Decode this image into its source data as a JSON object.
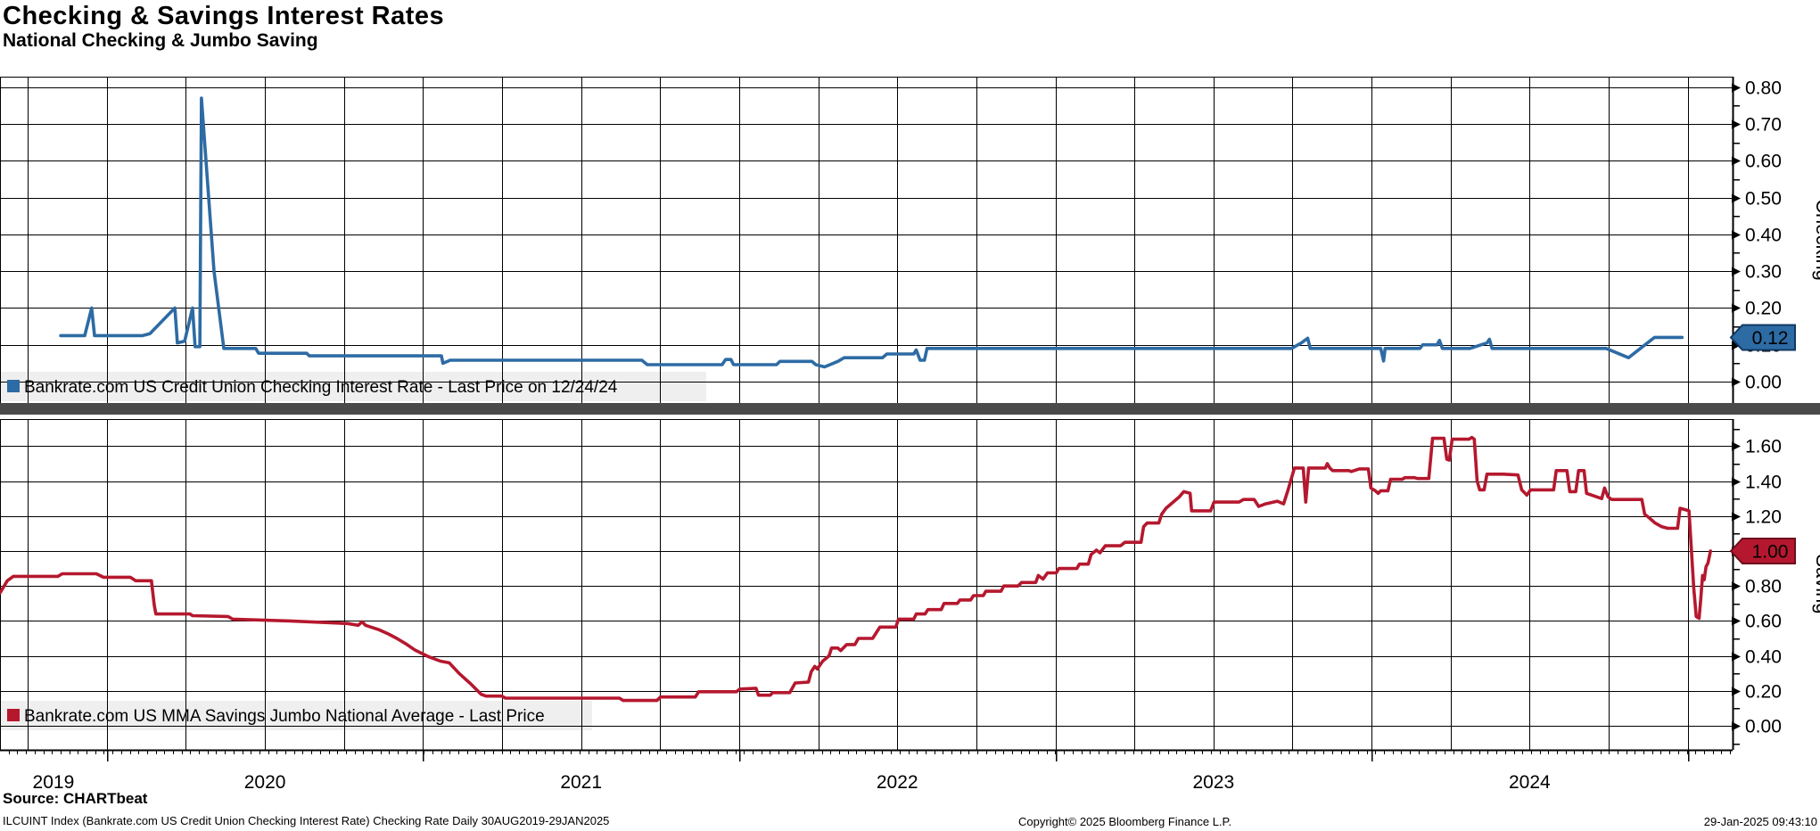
{
  "header": {
    "title": "Checking & Savings Interest Rates",
    "subtitle": "National Checking & Jumbo Saving"
  },
  "colors": {
    "checking_line": "#2d6ba4",
    "checking_flag_border": "#123a63",
    "saving_line": "#b5182e",
    "saving_flag_border": "#6d0e1c",
    "grid": "#000000",
    "separator": "#4a4a4a",
    "legend_band": "#efefef",
    "flag_text": "#ffffff"
  },
  "x_axis": {
    "x_domain": [
      2019.662,
      2025.142
    ],
    "year_labels": [
      "2019",
      "2020",
      "2021",
      "2022",
      "2023",
      "2024"
    ],
    "year_boundaries": [
      2020,
      2021,
      2022,
      2023,
      2024,
      2025
    ]
  },
  "footer": {
    "source": "Source: CHARTbeat",
    "tagline": "ILCUINT Index (Bankrate.com US Credit Union Checking Interest Rate) Checking Rate  Daily 30AUG2019-29JAN2025",
    "copyright": "Copyright© 2025 Bloomberg Finance L.P.",
    "timestamp": "29-Jan-2025 09:43:10"
  },
  "chart_data": [
    {
      "type": "line",
      "panel": "checking",
      "legend": "Bankrate.com US Credit Union Checking Interest Rate - Last Price on 12/24/24",
      "axis_label": "Checking",
      "color": "#2d6ba4",
      "last_price_value": 0.12,
      "last_price_label": "0.12",
      "ylim": [
        -0.06,
        0.83
      ],
      "yticks": [
        0.0,
        0.1,
        0.2,
        0.3,
        0.4,
        0.5,
        0.6,
        0.7,
        0.8
      ],
      "legend_position": "bottom-left",
      "grid": true,
      "points": [
        [
          2019.854,
          0.125
        ],
        [
          2019.93,
          0.125
        ],
        [
          2019.952,
          0.2
        ],
        [
          2019.961,
          0.125
        ],
        [
          2020.113,
          0.125
        ],
        [
          2020.136,
          0.13
        ],
        [
          2020.215,
          0.2
        ],
        [
          2020.223,
          0.105
        ],
        [
          2020.246,
          0.11
        ],
        [
          2020.271,
          0.2
        ],
        [
          2020.279,
          0.095
        ],
        [
          2020.294,
          0.095
        ],
        [
          2020.299,
          0.77
        ],
        [
          2020.339,
          0.3
        ],
        [
          2020.37,
          0.09
        ],
        [
          2020.471,
          0.09
        ],
        [
          2020.48,
          0.077
        ],
        [
          2020.632,
          0.077
        ],
        [
          2020.64,
          0.07
        ],
        [
          2021.058,
          0.07
        ],
        [
          2021.063,
          0.05
        ],
        [
          2021.086,
          0.058
        ],
        [
          2021.692,
          0.058
        ],
        [
          2021.709,
          0.046
        ],
        [
          2021.946,
          0.046
        ],
        [
          2021.957,
          0.06
        ],
        [
          2021.974,
          0.06
        ],
        [
          2021.982,
          0.046
        ],
        [
          2022.118,
          0.046
        ],
        [
          2022.129,
          0.055
        ],
        [
          2022.23,
          0.055
        ],
        [
          2022.242,
          0.046
        ],
        [
          2022.27,
          0.04
        ],
        [
          2022.312,
          0.055
        ],
        [
          2022.332,
          0.065
        ],
        [
          2022.453,
          0.065
        ],
        [
          2022.467,
          0.075
        ],
        [
          2022.552,
          0.075
        ],
        [
          2022.56,
          0.086
        ],
        [
          2022.572,
          0.058
        ],
        [
          2022.586,
          0.058
        ],
        [
          2022.594,
          0.09
        ],
        [
          2023.747,
          0.09
        ],
        [
          2023.778,
          0.105
        ],
        [
          2023.798,
          0.118
        ],
        [
          2023.806,
          0.09
        ],
        [
          2023.981,
          0.09
        ],
        [
          2024.029,
          0.09
        ],
        [
          2024.038,
          0.056
        ],
        [
          2024.043,
          0.09
        ],
        [
          2024.153,
          0.09
        ],
        [
          2024.162,
          0.1
        ],
        [
          2024.207,
          0.1
        ],
        [
          2024.215,
          0.112
        ],
        [
          2024.224,
          0.09
        ],
        [
          2024.311,
          0.09
        ],
        [
          2024.365,
          0.105
        ],
        [
          2024.373,
          0.115
        ],
        [
          2024.381,
          0.09
        ],
        [
          2024.742,
          0.09
        ],
        [
          2024.813,
          0.065
        ],
        [
          2024.895,
          0.12
        ],
        [
          2024.982,
          0.12
        ]
      ]
    },
    {
      "type": "line",
      "panel": "saving",
      "legend": "Bankrate.com US MMA Savings Jumbo National Average - Last Price",
      "axis_label": "Saving",
      "color": "#b5182e",
      "last_price_value": 1.0,
      "last_price_label": "1.00",
      "ylim": [
        -0.14,
        1.76
      ],
      "yticks": [
        0.0,
        0.2,
        0.4,
        0.6,
        0.8,
        1.0,
        1.2,
        1.4,
        1.6
      ],
      "legend_position": "bottom-left",
      "grid": true,
      "points": [
        [
          2019.662,
          0.76
        ],
        [
          2019.685,
          0.83
        ],
        [
          2019.704,
          0.855
        ],
        [
          2019.845,
          0.855
        ],
        [
          2019.859,
          0.87
        ],
        [
          2019.967,
          0.87
        ],
        [
          2019.989,
          0.85
        ],
        [
          2020.074,
          0.85
        ],
        [
          2020.091,
          0.83
        ],
        [
          2020.141,
          0.83
        ],
        [
          2020.15,
          0.69
        ],
        [
          2020.155,
          0.64
        ],
        [
          2020.263,
          0.64
        ],
        [
          2020.271,
          0.63
        ],
        [
          2020.384,
          0.625
        ],
        [
          2020.398,
          0.61
        ],
        [
          2020.578,
          0.6
        ],
        [
          2020.762,
          0.585
        ],
        [
          2020.795,
          0.575
        ],
        [
          2020.807,
          0.595
        ],
        [
          2020.818,
          0.575
        ],
        [
          2020.86,
          0.55
        ],
        [
          2020.891,
          0.525
        ],
        [
          2020.917,
          0.5
        ],
        [
          2020.945,
          0.47
        ],
        [
          2020.973,
          0.435
        ],
        [
          2021.018,
          0.395
        ],
        [
          2021.055,
          0.37
        ],
        [
          2021.083,
          0.36
        ],
        [
          2021.114,
          0.3
        ],
        [
          2021.151,
          0.24
        ],
        [
          2021.184,
          0.18
        ],
        [
          2021.199,
          0.17
        ],
        [
          2021.249,
          0.17
        ],
        [
          2021.261,
          0.158
        ],
        [
          2021.621,
          0.158
        ],
        [
          2021.633,
          0.145
        ],
        [
          2021.74,
          0.145
        ],
        [
          2021.751,
          0.165
        ],
        [
          2021.861,
          0.165
        ],
        [
          2021.872,
          0.195
        ],
        [
          2021.991,
          0.195
        ],
        [
          2022.002,
          0.21
        ],
        [
          2022.053,
          0.215
        ],
        [
          2022.061,
          0.175
        ],
        [
          2022.098,
          0.175
        ],
        [
          2022.106,
          0.19
        ],
        [
          2022.16,
          0.19
        ],
        [
          2022.177,
          0.245
        ],
        [
          2022.219,
          0.25
        ],
        [
          2022.228,
          0.31
        ],
        [
          2022.239,
          0.34
        ],
        [
          2022.247,
          0.325
        ],
        [
          2022.264,
          0.37
        ],
        [
          2022.284,
          0.4
        ],
        [
          2022.292,
          0.445
        ],
        [
          2022.312,
          0.445
        ],
        [
          2022.321,
          0.43
        ],
        [
          2022.34,
          0.465
        ],
        [
          2022.366,
          0.465
        ],
        [
          2022.377,
          0.5
        ],
        [
          2022.422,
          0.5
        ],
        [
          2022.436,
          0.54
        ],
        [
          2022.445,
          0.565
        ],
        [
          2022.495,
          0.565
        ],
        [
          2022.504,
          0.61
        ],
        [
          2022.552,
          0.61
        ],
        [
          2022.56,
          0.64
        ],
        [
          2022.588,
          0.64
        ],
        [
          2022.597,
          0.665
        ],
        [
          2022.639,
          0.665
        ],
        [
          2022.648,
          0.7
        ],
        [
          2022.69,
          0.7
        ],
        [
          2022.698,
          0.72
        ],
        [
          2022.732,
          0.72
        ],
        [
          2022.741,
          0.745
        ],
        [
          2022.772,
          0.745
        ],
        [
          2022.78,
          0.77
        ],
        [
          2022.828,
          0.77
        ],
        [
          2022.837,
          0.8
        ],
        [
          2022.882,
          0.8
        ],
        [
          2022.893,
          0.82
        ],
        [
          2022.938,
          0.82
        ],
        [
          2022.946,
          0.86
        ],
        [
          2022.961,
          0.84
        ],
        [
          2022.975,
          0.875
        ],
        [
          2023.003,
          0.875
        ],
        [
          2023.011,
          0.9
        ],
        [
          2023.068,
          0.9
        ],
        [
          2023.076,
          0.925
        ],
        [
          2023.104,
          0.925
        ],
        [
          2023.113,
          0.98
        ],
        [
          2023.13,
          1.005
        ],
        [
          2023.141,
          0.99
        ],
        [
          2023.158,
          1.03
        ],
        [
          2023.206,
          1.03
        ],
        [
          2023.22,
          1.05
        ],
        [
          2023.271,
          1.05
        ],
        [
          2023.279,
          1.14
        ],
        [
          2023.29,
          1.16
        ],
        [
          2023.327,
          1.16
        ],
        [
          2023.336,
          1.21
        ],
        [
          2023.35,
          1.245
        ],
        [
          2023.392,
          1.31
        ],
        [
          2023.406,
          1.34
        ],
        [
          2023.426,
          1.33
        ],
        [
          2023.431,
          1.23
        ],
        [
          2023.491,
          1.23
        ],
        [
          2023.502,
          1.28
        ],
        [
          2023.581,
          1.28
        ],
        [
          2023.595,
          1.295
        ],
        [
          2023.629,
          1.295
        ],
        [
          2023.643,
          1.255
        ],
        [
          2023.665,
          1.27
        ],
        [
          2023.702,
          1.285
        ],
        [
          2023.722,
          1.27
        ],
        [
          2023.736,
          1.35
        ],
        [
          2023.756,
          1.475
        ],
        [
          2023.784,
          1.475
        ],
        [
          2023.792,
          1.28
        ],
        [
          2023.801,
          1.475
        ],
        [
          2023.854,
          1.475
        ],
        [
          2023.86,
          1.5
        ],
        [
          2023.868,
          1.475
        ],
        [
          2023.877,
          1.46
        ],
        [
          2023.928,
          1.46
        ],
        [
          2023.936,
          1.455
        ],
        [
          2023.961,
          1.47
        ],
        [
          2023.99,
          1.47
        ],
        [
          2023.998,
          1.36
        ],
        [
          2024.012,
          1.345
        ],
        [
          2024.021,
          1.33
        ],
        [
          2024.029,
          1.345
        ],
        [
          2024.052,
          1.345
        ],
        [
          2024.06,
          1.41
        ],
        [
          2024.097,
          1.41
        ],
        [
          2024.105,
          1.42
        ],
        [
          2024.136,
          1.42
        ],
        [
          2024.145,
          1.415
        ],
        [
          2024.181,
          1.415
        ],
        [
          2024.193,
          1.645
        ],
        [
          2024.229,
          1.645
        ],
        [
          2024.238,
          1.525
        ],
        [
          2024.246,
          1.52
        ],
        [
          2024.255,
          1.64
        ],
        [
          2024.308,
          1.64
        ],
        [
          2024.317,
          1.65
        ],
        [
          2024.325,
          1.64
        ],
        [
          2024.334,
          1.4
        ],
        [
          2024.342,
          1.35
        ],
        [
          2024.356,
          1.35
        ],
        [
          2024.365,
          1.44
        ],
        [
          2024.418,
          1.44
        ],
        [
          2024.463,
          1.435
        ],
        [
          2024.475,
          1.35
        ],
        [
          2024.491,
          1.32
        ],
        [
          2024.503,
          1.35
        ],
        [
          2024.576,
          1.35
        ],
        [
          2024.584,
          1.46
        ],
        [
          2024.618,
          1.46
        ],
        [
          2024.627,
          1.34
        ],
        [
          2024.646,
          1.34
        ],
        [
          2024.655,
          1.46
        ],
        [
          2024.672,
          1.46
        ],
        [
          2024.68,
          1.33
        ],
        [
          2024.728,
          1.3
        ],
        [
          2024.737,
          1.36
        ],
        [
          2024.748,
          1.31
        ],
        [
          2024.759,
          1.295
        ],
        [
          2024.855,
          1.295
        ],
        [
          2024.864,
          1.21
        ],
        [
          2024.875,
          1.195
        ],
        [
          2024.897,
          1.16
        ],
        [
          2024.917,
          1.14
        ],
        [
          2024.937,
          1.13
        ],
        [
          2024.968,
          1.13
        ],
        [
          2024.976,
          1.245
        ],
        [
          2025.004,
          1.23
        ],
        [
          2025.019,
          0.79
        ],
        [
          2025.027,
          0.625
        ],
        [
          2025.036,
          0.615
        ],
        [
          2025.041,
          0.72
        ],
        [
          2025.047,
          0.86
        ],
        [
          2025.052,
          0.835
        ],
        [
          2025.058,
          0.91
        ],
        [
          2025.064,
          0.93
        ],
        [
          2025.072,
          1.0
        ]
      ]
    }
  ]
}
